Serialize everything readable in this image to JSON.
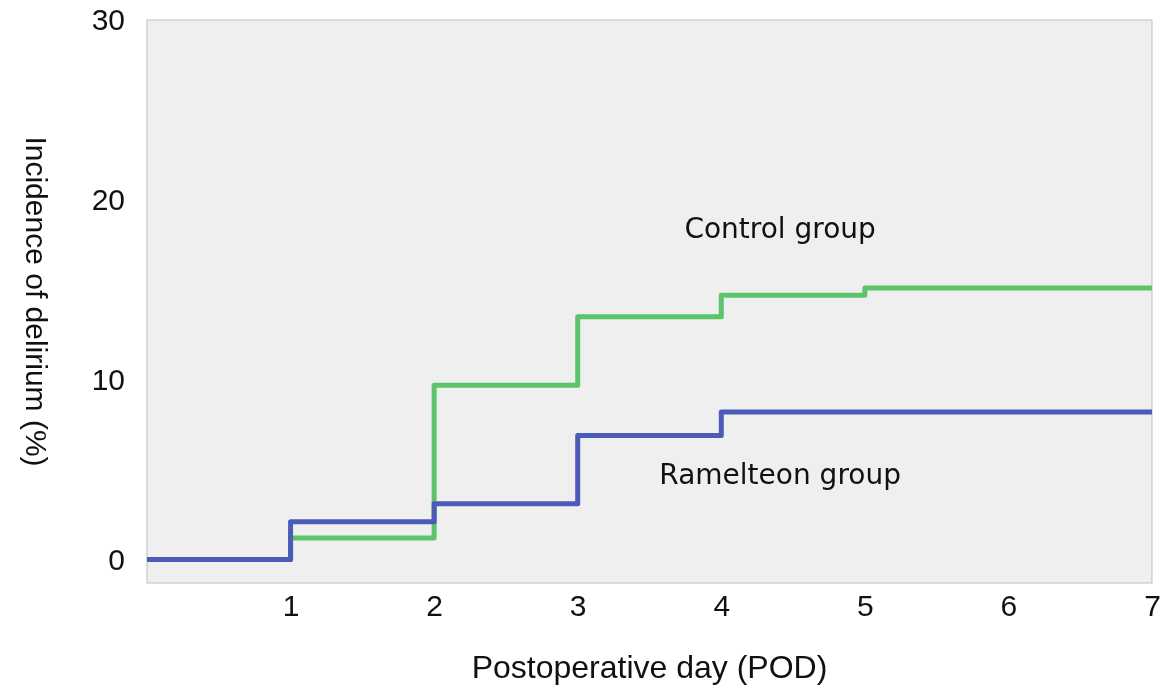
{
  "chart_data": {
    "type": "step",
    "xlabel": "Postoperative day (POD)",
    "ylabel": "Incidence of delirium (%)",
    "xlim": [
      0,
      7
    ],
    "xticks": [
      1,
      2,
      3,
      4,
      5,
      6,
      7
    ],
    "ylim": [
      -1.3,
      30
    ],
    "yticks": [
      0,
      10,
      20,
      30
    ],
    "grid": false,
    "legend": false,
    "x": [
      0,
      1,
      2,
      3,
      4,
      5,
      7
    ],
    "series": [
      {
        "name": "Control group",
        "color": "#5cc46a",
        "values": [
          0,
          1.2,
          9.7,
          13.5,
          14.7,
          15.1,
          15.1
        ]
      },
      {
        "name": "Ramelteon group",
        "color": "#4a5bb8",
        "values": [
          0,
          2.1,
          3.1,
          6.9,
          8.2,
          8.2,
          8.2
        ]
      }
    ]
  }
}
